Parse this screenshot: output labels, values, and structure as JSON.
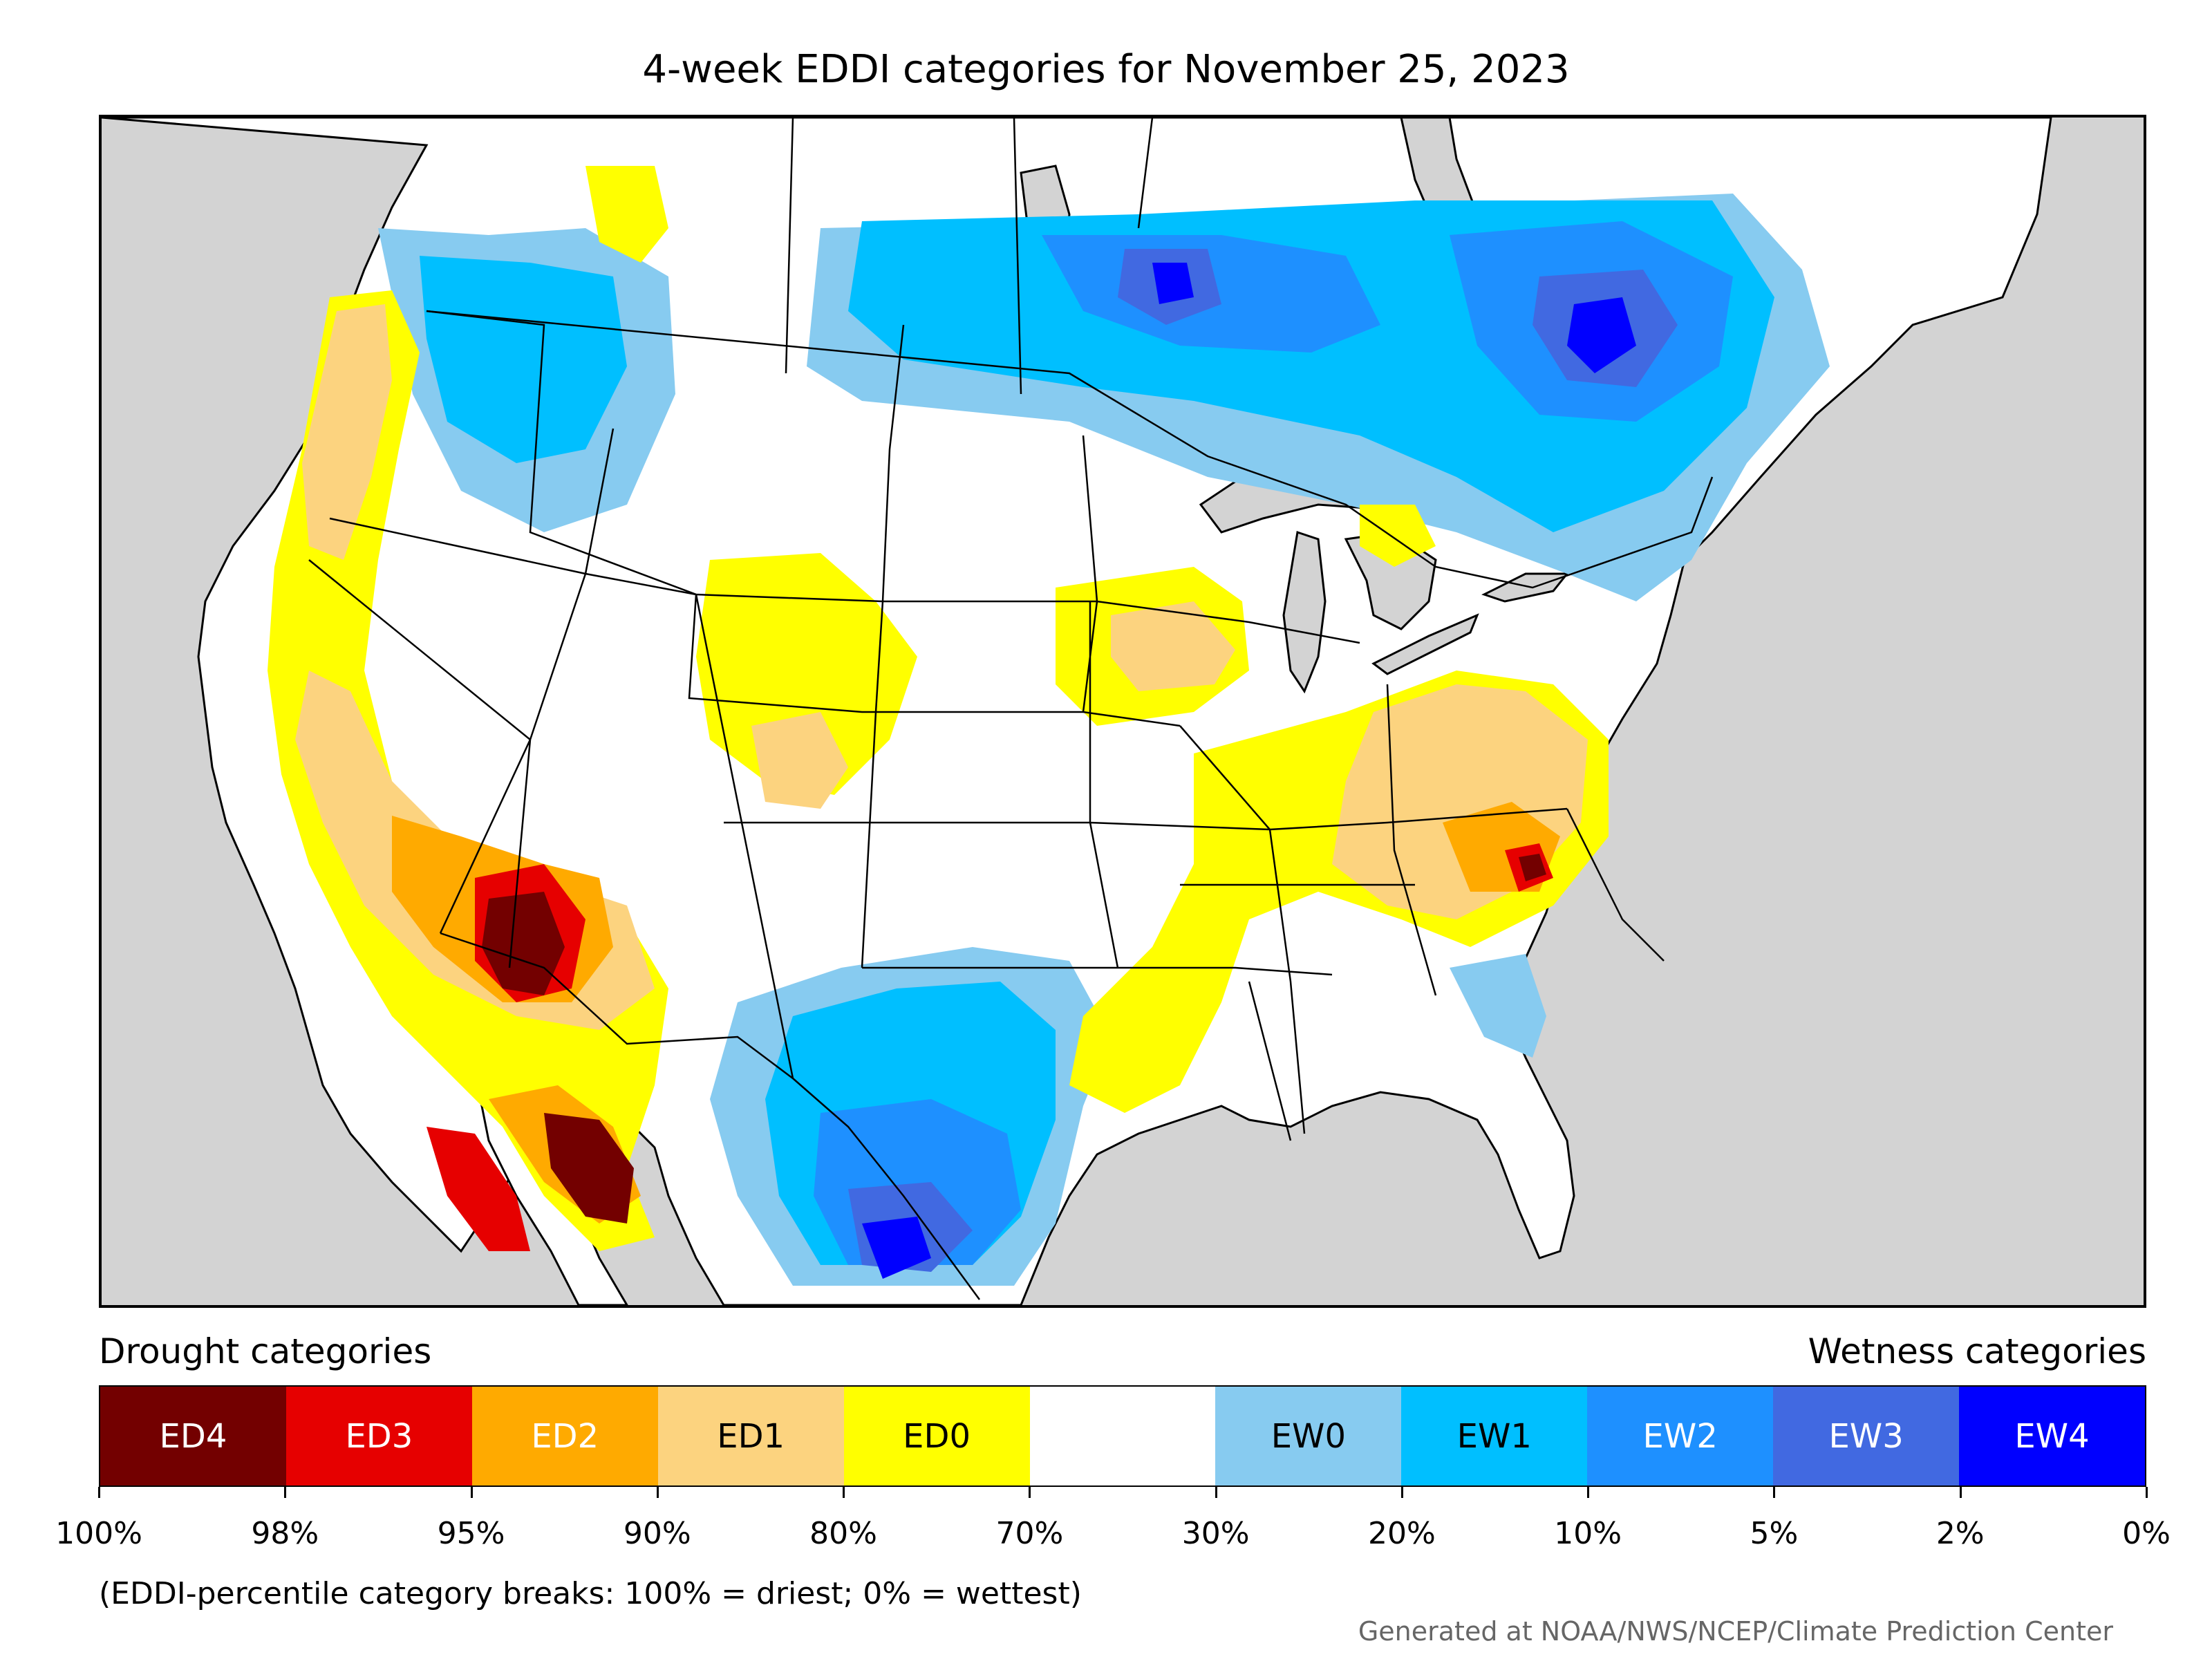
{
  "title": "4-week EDDI categories for November 25, 2023",
  "map": {
    "region": "Contiguous United States with portions of Canada and Mexico",
    "colors": {
      "ocean": "#d3d3d3",
      "land": "#ffffff",
      "boundaries": "#000000"
    }
  },
  "legend": {
    "drought_label": "Drought categories",
    "wetness_label": "Wetness categories",
    "categories": [
      {
        "label": "ED4",
        "color": "#730000",
        "text_color": "#ffffff"
      },
      {
        "label": "ED3",
        "color": "#e60000",
        "text_color": "#ffffff"
      },
      {
        "label": "ED2",
        "color": "#ffaa00",
        "text_color": "#ffffff"
      },
      {
        "label": "ED1",
        "color": "#fcd37f",
        "text_color": "#000000"
      },
      {
        "label": "ED0",
        "color": "#ffff00",
        "text_color": "#000000"
      },
      {
        "label": "",
        "color": "#ffffff",
        "text_color": "#000000"
      },
      {
        "label": "EW0",
        "color": "#87cbf0",
        "text_color": "#000000"
      },
      {
        "label": "EW1",
        "color": "#00bfff",
        "text_color": "#000000"
      },
      {
        "label": "EW2",
        "color": "#1e90ff",
        "text_color": "#ffffff"
      },
      {
        "label": "EW3",
        "color": "#4169e1",
        "text_color": "#ffffff"
      },
      {
        "label": "EW4",
        "color": "#0000ff",
        "text_color": "#ffffff"
      }
    ],
    "breaks": [
      "100%",
      "98%",
      "95%",
      "90%",
      "80%",
      "70%",
      "30%",
      "20%",
      "10%",
      "5%",
      "2%",
      "0%"
    ]
  },
  "note": "(EDDI-percentile category breaks: 100% = driest; 0% = wettest)",
  "credit": "Generated at NOAA/NWS/NCEP/Climate Prediction Center"
}
